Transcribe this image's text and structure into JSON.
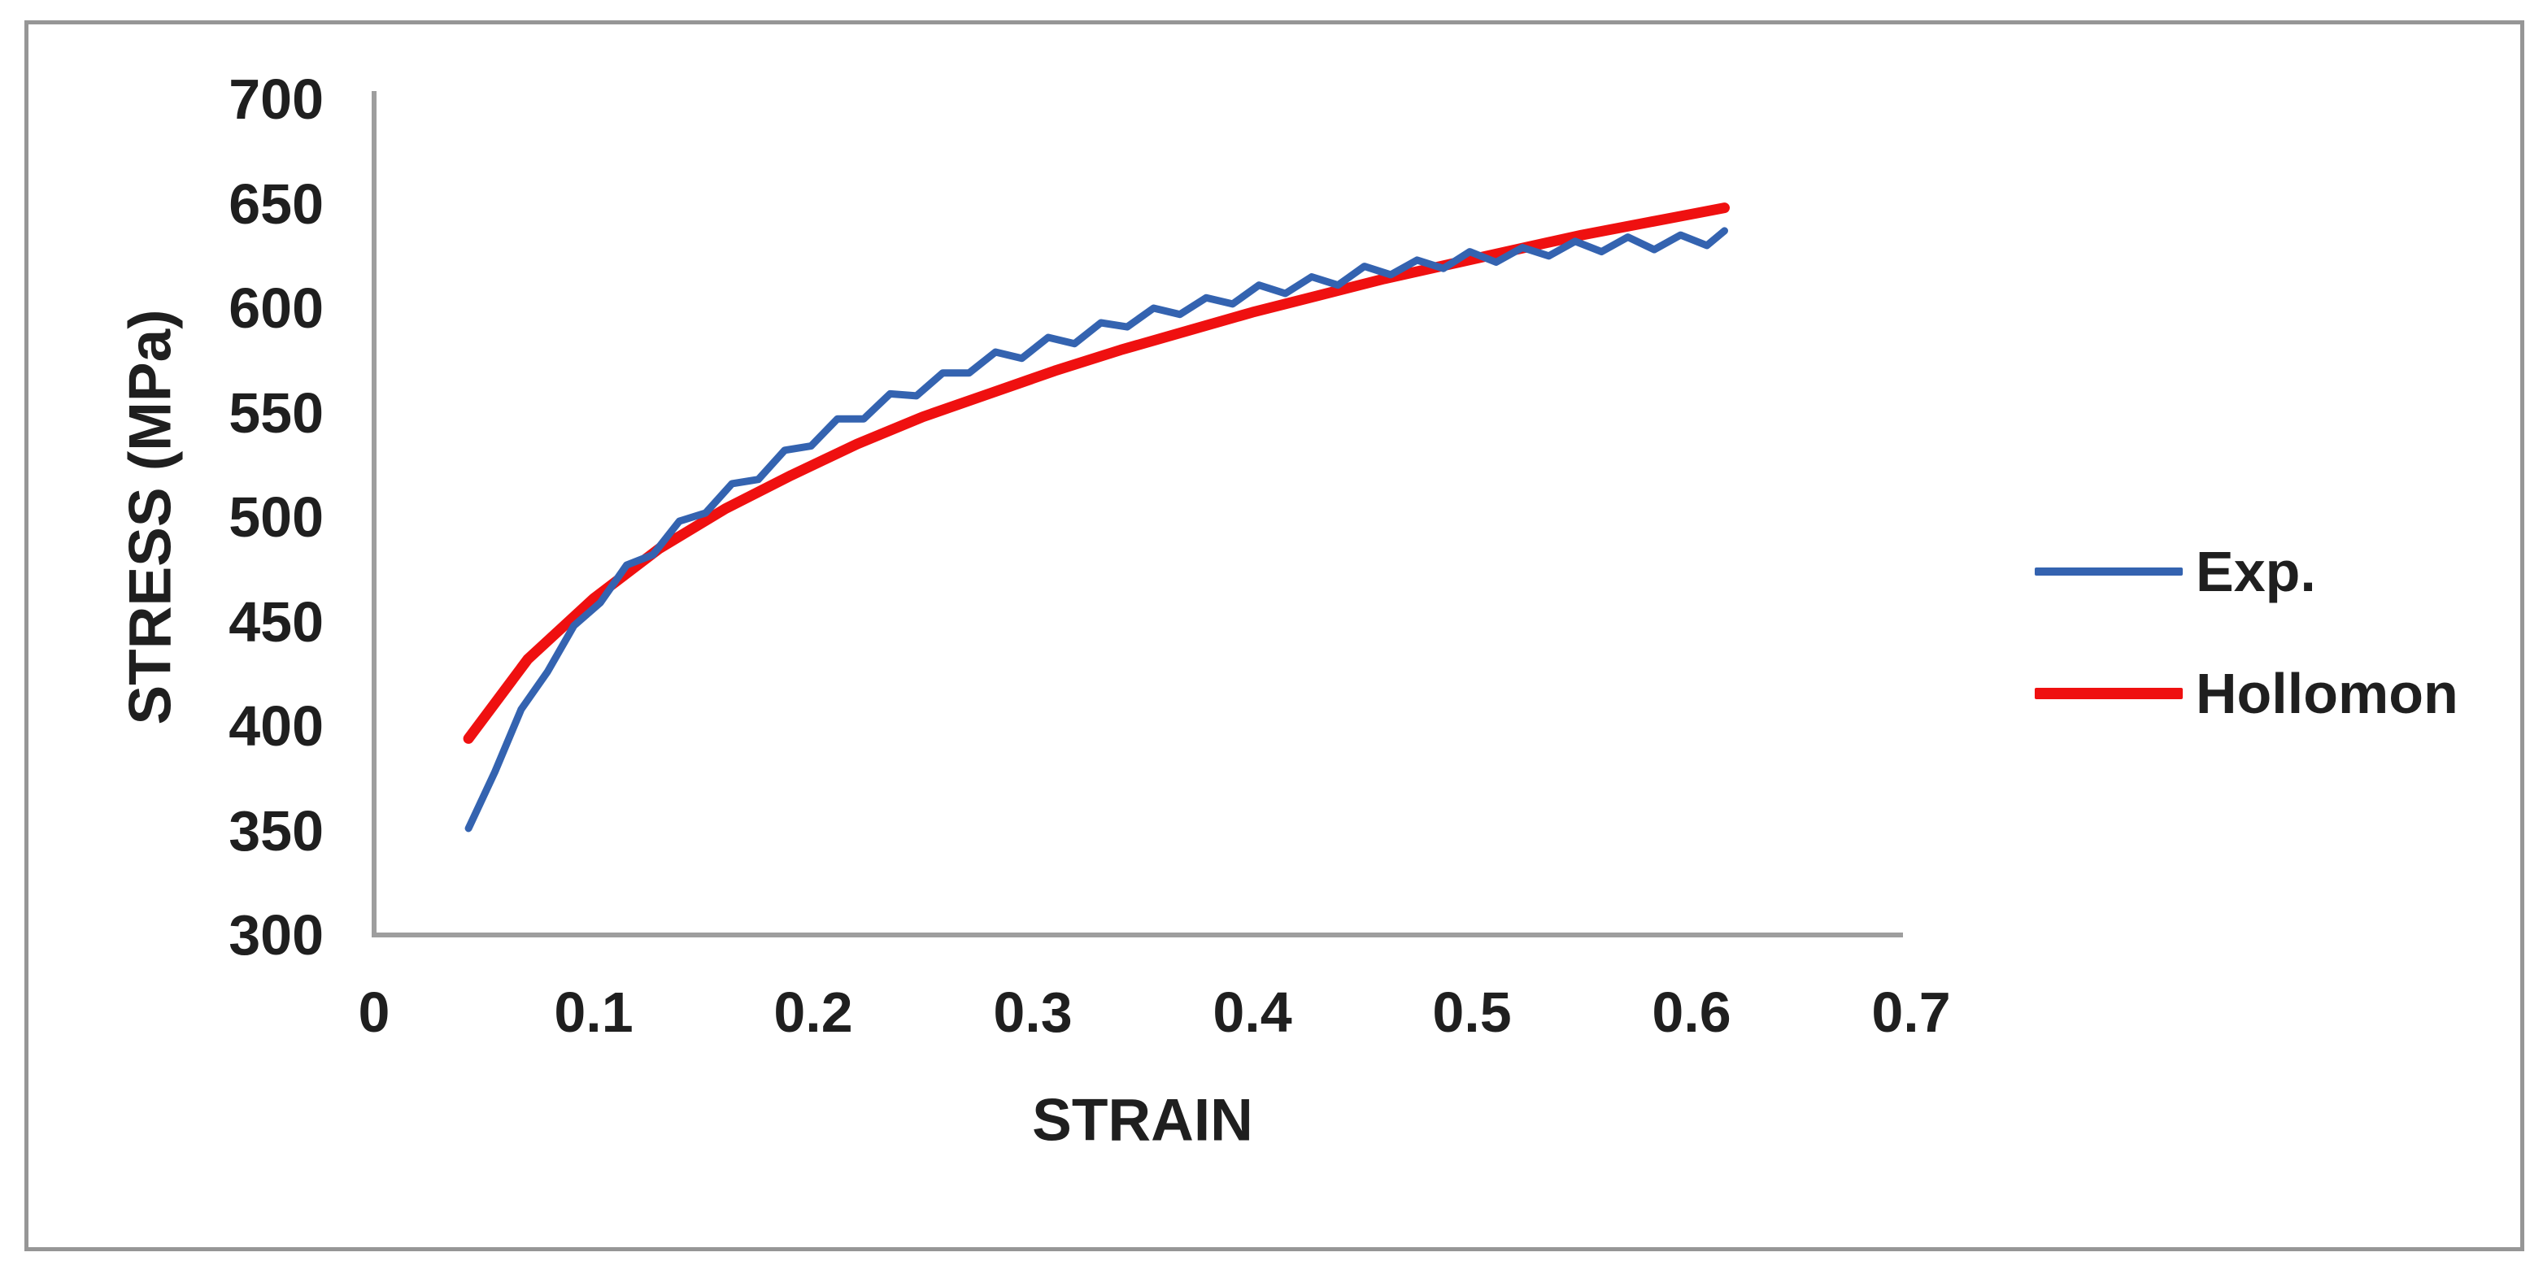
{
  "chart_data": {
    "type": "line",
    "title": "",
    "xlabel": "STRAIN",
    "ylabel": "STRESS (MPa)",
    "xlim": [
      0,
      0.7
    ],
    "ylim": [
      300,
      700
    ],
    "grid": false,
    "legend_position": "right",
    "x_ticks": [
      {
        "value": 0,
        "label": "0"
      },
      {
        "value": 0.1,
        "label": "0.1"
      },
      {
        "value": 0.2,
        "label": "0.2"
      },
      {
        "value": 0.3,
        "label": "0.3"
      },
      {
        "value": 0.4,
        "label": "0.4"
      },
      {
        "value": 0.5,
        "label": "0.5"
      },
      {
        "value": 0.6,
        "label": "0.6"
      },
      {
        "value": 0.7,
        "label": "0.7"
      }
    ],
    "y_ticks": [
      {
        "value": 700,
        "label": "700"
      },
      {
        "value": 650,
        "label": "650"
      },
      {
        "value": 600,
        "label": "600"
      },
      {
        "value": 550,
        "label": "550"
      },
      {
        "value": 500,
        "label": "500"
      },
      {
        "value": 450,
        "label": "450"
      },
      {
        "value": 400,
        "label": "400"
      },
      {
        "value": 350,
        "label": "350"
      },
      {
        "value": 300,
        "label": "300"
      }
    ],
    "series": [
      {
        "name": "Exp.",
        "color": "#3463B0",
        "line_width": 9,
        "swatch_height": 10,
        "points": [
          [
            0.043,
            351
          ],
          [
            0.055,
            378
          ],
          [
            0.067,
            408
          ],
          [
            0.079,
            426
          ],
          [
            0.091,
            448
          ],
          [
            0.103,
            459
          ],
          [
            0.115,
            477
          ],
          [
            0.127,
            482
          ],
          [
            0.139,
            498
          ],
          [
            0.151,
            502
          ],
          [
            0.163,
            516
          ],
          [
            0.175,
            518
          ],
          [
            0.187,
            532
          ],
          [
            0.199,
            534
          ],
          [
            0.211,
            547
          ],
          [
            0.223,
            547
          ],
          [
            0.235,
            559
          ],
          [
            0.247,
            558
          ],
          [
            0.259,
            569
          ],
          [
            0.271,
            569
          ],
          [
            0.283,
            579
          ],
          [
            0.295,
            576
          ],
          [
            0.307,
            586
          ],
          [
            0.319,
            583
          ],
          [
            0.331,
            593
          ],
          [
            0.343,
            591
          ],
          [
            0.355,
            600
          ],
          [
            0.367,
            597
          ],
          [
            0.379,
            605
          ],
          [
            0.391,
            602
          ],
          [
            0.403,
            611
          ],
          [
            0.415,
            607
          ],
          [
            0.427,
            615
          ],
          [
            0.439,
            611
          ],
          [
            0.451,
            620
          ],
          [
            0.463,
            616
          ],
          [
            0.475,
            623
          ],
          [
            0.487,
            619
          ],
          [
            0.499,
            627
          ],
          [
            0.511,
            622
          ],
          [
            0.523,
            629
          ],
          [
            0.535,
            625
          ],
          [
            0.547,
            632
          ],
          [
            0.559,
            627
          ],
          [
            0.571,
            634
          ],
          [
            0.583,
            628
          ],
          [
            0.595,
            635
          ],
          [
            0.607,
            630
          ],
          [
            0.615,
            637
          ]
        ]
      },
      {
        "name": "Hollomon",
        "color": "#EF1010",
        "line_width": 13,
        "swatch_height": 14,
        "points": [
          [
            0.043,
            394
          ],
          [
            0.07,
            432
          ],
          [
            0.1,
            461
          ],
          [
            0.13,
            485
          ],
          [
            0.16,
            504
          ],
          [
            0.19,
            520
          ],
          [
            0.22,
            535
          ],
          [
            0.25,
            548
          ],
          [
            0.28,
            559
          ],
          [
            0.31,
            570
          ],
          [
            0.34,
            580
          ],
          [
            0.37,
            589
          ],
          [
            0.4,
            598
          ],
          [
            0.43,
            606
          ],
          [
            0.46,
            614
          ],
          [
            0.49,
            621
          ],
          [
            0.52,
            628
          ],
          [
            0.55,
            635
          ],
          [
            0.58,
            641
          ],
          [
            0.6,
            645
          ],
          [
            0.615,
            648
          ]
        ]
      }
    ],
    "axis_color": "#9E9E9E",
    "frame_color": "#969696",
    "text_color": "#1F1F1F"
  }
}
